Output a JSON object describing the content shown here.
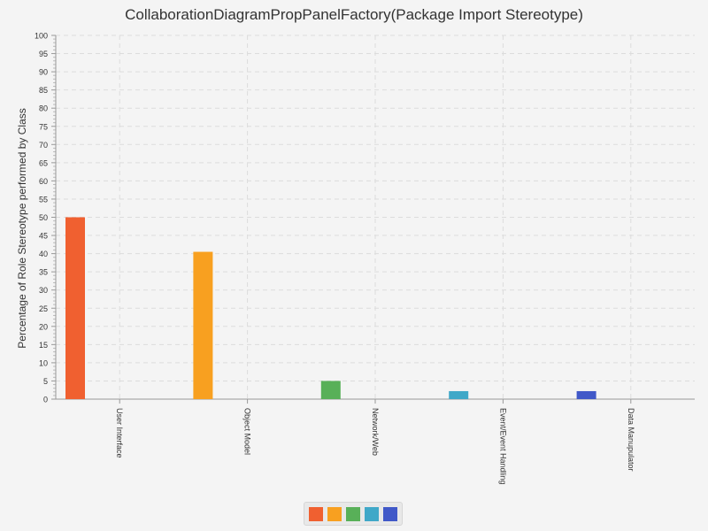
{
  "chart_data": {
    "type": "bar",
    "title": "CollaborationDiagramPropPanelFactory(Package Import Stereotype)",
    "xlabel": "",
    "ylabel": "Percentage of Role Stereotype performed by Class",
    "ylim": [
      0,
      100
    ],
    "ytick_step": 5,
    "grid": true,
    "categories": [
      "User Interface",
      "Object Model",
      "Network/Web",
      "Event/Event Handling",
      "Data Manupulator"
    ],
    "values": [
      50,
      40.5,
      5,
      2.2,
      2.2
    ],
    "colors": [
      "#f06030",
      "#f8a020",
      "#58b058",
      "#40a8c8",
      "#4058c8"
    ],
    "legend": {
      "position": "bottom"
    }
  }
}
